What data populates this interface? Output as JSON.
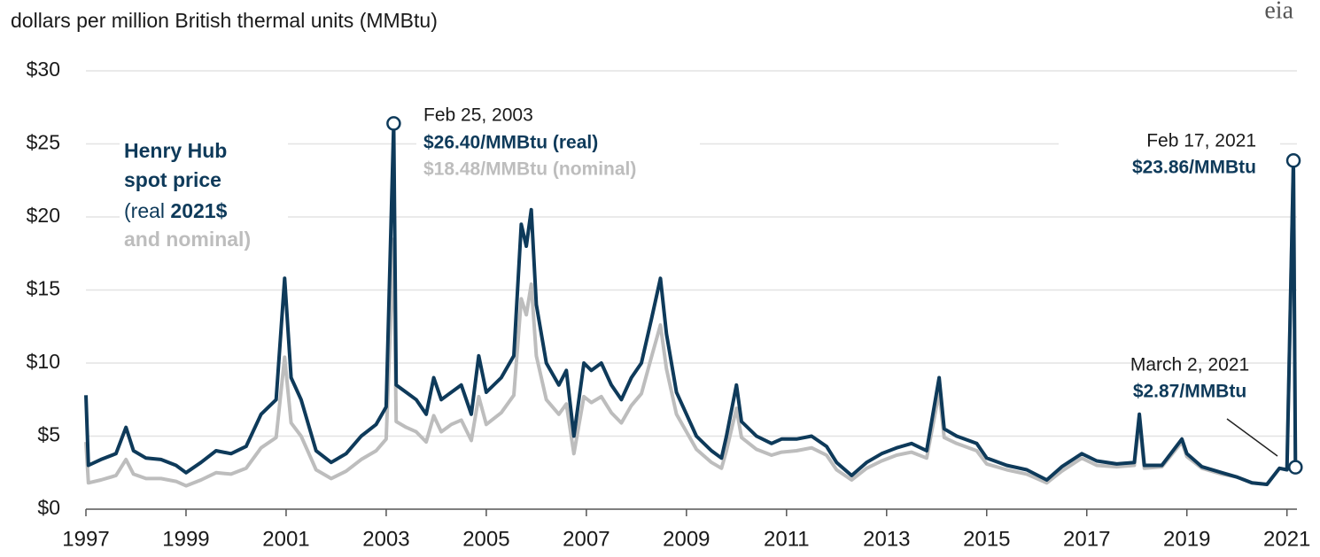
{
  "chart_data": {
    "type": "line",
    "title": "dollars per million British thermal units (MMBtu)",
    "logo_text": "eia",
    "legend_text": {
      "line1": "Henry Hub",
      "line2": "spot price",
      "line3a": "(real ",
      "line3b": "2021$",
      "line4": "and nominal)"
    },
    "annotations": {
      "peak_2003": {
        "date": "Feb 25, 2003",
        "real": "$26.40/MMBtu (real)",
        "nominal": "$18.48/MMBtu (nominal)"
      },
      "peak_2021": {
        "date": "Feb 17, 2021",
        "price": "$23.86/MMBtu"
      },
      "latest": {
        "date": "March 2, 2021",
        "price": "$2.87/MMBtu"
      }
    },
    "x": [
      1997.0,
      1997.05,
      1997.3,
      1997.6,
      1997.8,
      1997.95,
      1998.2,
      1998.5,
      1998.8,
      1999.0,
      1999.3,
      1999.6,
      1999.9,
      2000.2,
      2000.5,
      2000.8,
      2000.97,
      2001.1,
      2001.3,
      2001.6,
      2001.9,
      2002.2,
      2002.5,
      2002.8,
      2003.0,
      2003.15,
      2003.2,
      2003.4,
      2003.6,
      2003.8,
      2003.95,
      2004.1,
      2004.3,
      2004.5,
      2004.7,
      2004.85,
      2005.0,
      2005.3,
      2005.55,
      2005.7,
      2005.8,
      2005.9,
      2006.0,
      2006.2,
      2006.45,
      2006.6,
      2006.75,
      2006.95,
      2007.1,
      2007.3,
      2007.5,
      2007.7,
      2007.9,
      2008.1,
      2008.3,
      2008.48,
      2008.6,
      2008.8,
      2009.0,
      2009.2,
      2009.5,
      2009.7,
      2009.8,
      2010.0,
      2010.1,
      2010.4,
      2010.7,
      2010.9,
      2011.2,
      2011.5,
      2011.8,
      2012.0,
      2012.3,
      2012.6,
      2012.9,
      2013.2,
      2013.5,
      2013.8,
      2014.05,
      2014.15,
      2014.4,
      2014.8,
      2015.0,
      2015.4,
      2015.8,
      2016.2,
      2016.5,
      2016.9,
      2017.2,
      2017.6,
      2017.95,
      2018.05,
      2018.15,
      2018.5,
      2018.9,
      2019.0,
      2019.3,
      2019.7,
      2020.0,
      2020.3,
      2020.6,
      2020.85,
      2021.0,
      2021.13,
      2021.17
    ],
    "series": [
      {
        "color": "#0e3a5a",
        "values": [
          7.8,
          3.0,
          3.4,
          3.8,
          5.6,
          4.0,
          3.5,
          3.4,
          3.0,
          2.5,
          3.2,
          4.0,
          3.8,
          4.3,
          6.5,
          7.5,
          15.8,
          9.0,
          7.5,
          4.0,
          3.2,
          3.8,
          5.0,
          5.8,
          7.0,
          26.4,
          8.5,
          8.0,
          7.5,
          6.5,
          9.0,
          7.5,
          8.0,
          8.5,
          6.5,
          10.5,
          8.0,
          9.0,
          10.5,
          19.5,
          18.0,
          20.5,
          14.0,
          10.0,
          8.5,
          9.5,
          5.0,
          10.0,
          9.5,
          10.0,
          8.5,
          7.5,
          9.0,
          10.0,
          13.0,
          15.8,
          12.0,
          8.0,
          6.5,
          5.0,
          4.0,
          3.5,
          5.0,
          8.5,
          6.0,
          5.0,
          4.5,
          4.8,
          4.8,
          5.0,
          4.3,
          3.2,
          2.3,
          3.2,
          3.8,
          4.2,
          4.5,
          4.0,
          9.0,
          5.5,
          5.0,
          4.5,
          3.5,
          3.0,
          2.7,
          2.0,
          2.9,
          3.8,
          3.3,
          3.1,
          3.2,
          6.5,
          3.0,
          3.0,
          4.8,
          3.8,
          2.9,
          2.5,
          2.2,
          1.8,
          1.7,
          2.8,
          2.7,
          23.86,
          2.87
        ]
      },
      {
        "color": "#bdbdbd",
        "values": [
          4.6,
          1.8,
          2.0,
          2.3,
          3.4,
          2.4,
          2.1,
          2.1,
          1.9,
          1.6,
          2.0,
          2.5,
          2.4,
          2.8,
          4.2,
          4.9,
          10.4,
          5.9,
          5.0,
          2.7,
          2.1,
          2.6,
          3.4,
          4.0,
          4.8,
          18.48,
          6.0,
          5.6,
          5.3,
          4.6,
          6.4,
          5.3,
          5.8,
          6.1,
          4.7,
          7.7,
          5.8,
          6.6,
          7.8,
          14.4,
          13.3,
          15.4,
          10.5,
          7.5,
          6.5,
          7.2,
          3.8,
          7.7,
          7.3,
          7.7,
          6.6,
          5.9,
          7.1,
          7.9,
          10.4,
          12.6,
          9.6,
          6.5,
          5.3,
          4.1,
          3.2,
          2.8,
          4.0,
          6.9,
          4.9,
          4.1,
          3.7,
          3.9,
          4.0,
          4.2,
          3.7,
          2.7,
          2.0,
          2.8,
          3.3,
          3.7,
          3.9,
          3.5,
          8.0,
          4.9,
          4.5,
          4.0,
          3.1,
          2.7,
          2.4,
          1.8,
          2.6,
          3.5,
          3.0,
          2.9,
          3.0,
          6.0,
          2.8,
          2.9,
          4.6,
          3.6,
          2.8,
          2.4,
          2.2,
          1.8,
          1.7,
          2.8,
          2.7,
          23.86,
          2.87
        ]
      }
    ],
    "xlim": [
      1997,
      2021.2
    ],
    "xticks": [
      1997,
      1999,
      2001,
      2003,
      2005,
      2007,
      2009,
      2011,
      2013,
      2015,
      2017,
      2019,
      2021
    ],
    "ylim": [
      0,
      30
    ],
    "yticks": [
      {
        "value": 0,
        "label": "$0"
      },
      {
        "value": 5,
        "label": "$5"
      },
      {
        "value": 10,
        "label": "$10"
      },
      {
        "value": 15,
        "label": "$15"
      },
      {
        "value": 20,
        "label": "$20"
      },
      {
        "value": 25,
        "label": "$25"
      },
      {
        "value": 30,
        "label": "$30"
      }
    ],
    "grid": true
  }
}
